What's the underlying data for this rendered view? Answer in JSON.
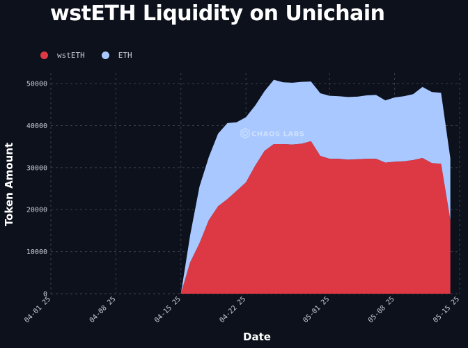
{
  "chart_data": {
    "type": "area",
    "stacked": true,
    "title": "wstETH Liquidity on Unichain",
    "xlabel": "Date",
    "ylabel": "Token Amount",
    "ylim": [
      0,
      52500
    ],
    "grid": true,
    "legend_position": "top-left",
    "watermark": "CHAOS LABS",
    "x_ticks": [
      "04-01 25",
      "04-08 25",
      "04-15 25",
      "04-22 25",
      "05-01 25",
      "05-08 25",
      "05-15 25"
    ],
    "y_ticks": [
      0,
      10000,
      20000,
      30000,
      40000,
      50000
    ],
    "x": [
      "2025-04-15",
      "2025-04-16",
      "2025-04-17",
      "2025-04-18",
      "2025-04-19",
      "2025-04-20",
      "2025-04-21",
      "2025-04-22",
      "2025-04-23",
      "2025-04-24",
      "2025-04-25",
      "2025-04-26",
      "2025-04-27",
      "2025-04-28",
      "2025-04-29",
      "2025-04-30",
      "2025-05-01",
      "2025-05-02",
      "2025-05-03",
      "2025-05-04",
      "2025-05-05",
      "2025-05-06",
      "2025-05-07",
      "2025-05-08",
      "2025-05-09",
      "2025-05-10",
      "2025-05-11",
      "2025-05-12",
      "2025-05-13",
      "2025-05-14"
    ],
    "series": [
      {
        "name": "wstETH",
        "color": "#dc3945",
        "values": [
          0,
          7500,
          12000,
          17500,
          20800,
          22500,
          24500,
          26500,
          30500,
          34000,
          35600,
          35600,
          35500,
          35700,
          36300,
          32800,
          32100,
          32100,
          31900,
          32000,
          32100,
          32100,
          31200,
          31400,
          31500,
          31800,
          32300,
          31100,
          30900,
          17500
        ]
      },
      {
        "name": "ETH",
        "color": "#a8c8ff",
        "values": [
          0,
          6500,
          13500,
          15000,
          17300,
          18100,
          16300,
          15500,
          14300,
          14200,
          15300,
          14700,
          14700,
          14700,
          14200,
          14900,
          15000,
          14900,
          14900,
          14900,
          15100,
          15200,
          14800,
          15300,
          15500,
          15700,
          16900,
          16900,
          16900,
          14700
        ]
      }
    ]
  }
}
